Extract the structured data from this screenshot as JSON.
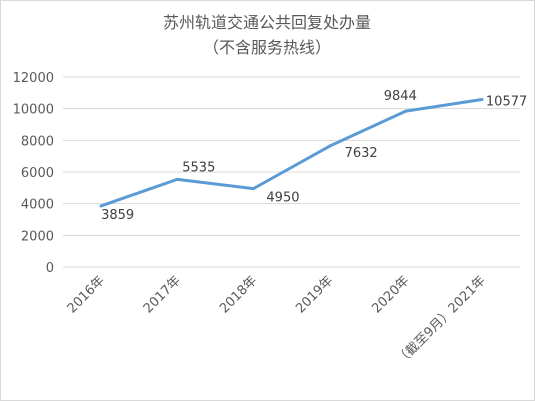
{
  "chart_data": {
    "type": "line",
    "title": "苏州轨道交通公共回复处办量",
    "subtitle": "（不含服务热线）",
    "categories": [
      "2016年",
      "2017年",
      "2018年",
      "2019年",
      "2020年",
      "（截至9月）2021年"
    ],
    "series": [
      {
        "values": [
          3859,
          5535,
          4950,
          7632,
          9844,
          10577
        ]
      }
    ],
    "data_labels": [
      "3859",
      "5535",
      "4950",
      "7632",
      "9844",
      "10577"
    ],
    "y_ticks": [
      "0",
      "2000",
      "4000",
      "6000",
      "8000",
      "10000",
      "12000"
    ],
    "ylim": [
      0,
      12000
    ],
    "grid": true,
    "legend": "none",
    "colors": {
      "series": "#5b9bd5",
      "grid": "#d9d9d9",
      "text": "#595959"
    }
  }
}
